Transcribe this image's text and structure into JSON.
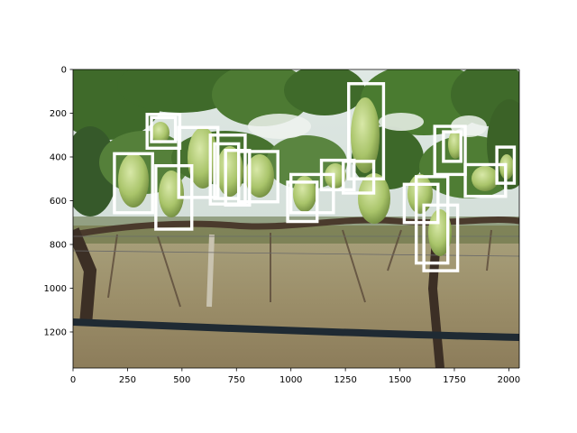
{
  "chart_data": {
    "type": "image",
    "image_content": "photograph of a vineyard trellis row with clusters of green grapes hanging from vines, drip irrigation pipe in the foreground",
    "xlim": [
      0,
      2048
    ],
    "ylim": [
      1365,
      0
    ],
    "xticks": [
      0,
      250,
      500,
      750,
      1000,
      1250,
      1500,
      1750,
      2000
    ],
    "yticks": [
      0,
      200,
      400,
      600,
      800,
      1000,
      1200
    ],
    "grid": false,
    "boxes": [
      {
        "x0": 340,
        "y0": 205,
        "x1": 490,
        "y1": 360
      },
      {
        "x0": 360,
        "y0": 220,
        "x1": 470,
        "y1": 330
      },
      {
        "x0": 190,
        "y0": 385,
        "x1": 365,
        "y1": 655
      },
      {
        "x0": 380,
        "y0": 440,
        "x1": 545,
        "y1": 730
      },
      {
        "x0": 485,
        "y0": 265,
        "x1": 665,
        "y1": 585
      },
      {
        "x0": 630,
        "y0": 300,
        "x1": 790,
        "y1": 615
      },
      {
        "x0": 650,
        "y0": 340,
        "x1": 760,
        "y1": 590
      },
      {
        "x0": 700,
        "y0": 370,
        "x1": 810,
        "y1": 620
      },
      {
        "x0": 760,
        "y0": 375,
        "x1": 940,
        "y1": 605
      },
      {
        "x0": 985,
        "y0": 515,
        "x1": 1120,
        "y1": 695
      },
      {
        "x0": 1000,
        "y0": 480,
        "x1": 1195,
        "y1": 655
      },
      {
        "x0": 1140,
        "y0": 415,
        "x1": 1290,
        "y1": 550
      },
      {
        "x0": 1240,
        "y0": 420,
        "x1": 1380,
        "y1": 565
      },
      {
        "x0": 1265,
        "y0": 65,
        "x1": 1425,
        "y1": 500
      },
      {
        "x0": 1520,
        "y0": 525,
        "x1": 1675,
        "y1": 700
      },
      {
        "x0": 1575,
        "y0": 490,
        "x1": 1720,
        "y1": 885
      },
      {
        "x0": 1610,
        "y0": 620,
        "x1": 1765,
        "y1": 920
      },
      {
        "x0": 1660,
        "y0": 260,
        "x1": 1800,
        "y1": 480
      },
      {
        "x0": 1700,
        "y0": 285,
        "x1": 1780,
        "y1": 420
      },
      {
        "x0": 1800,
        "y0": 435,
        "x1": 1985,
        "y1": 580
      },
      {
        "x0": 1945,
        "y0": 355,
        "x1": 2025,
        "y1": 520
      }
    ]
  }
}
